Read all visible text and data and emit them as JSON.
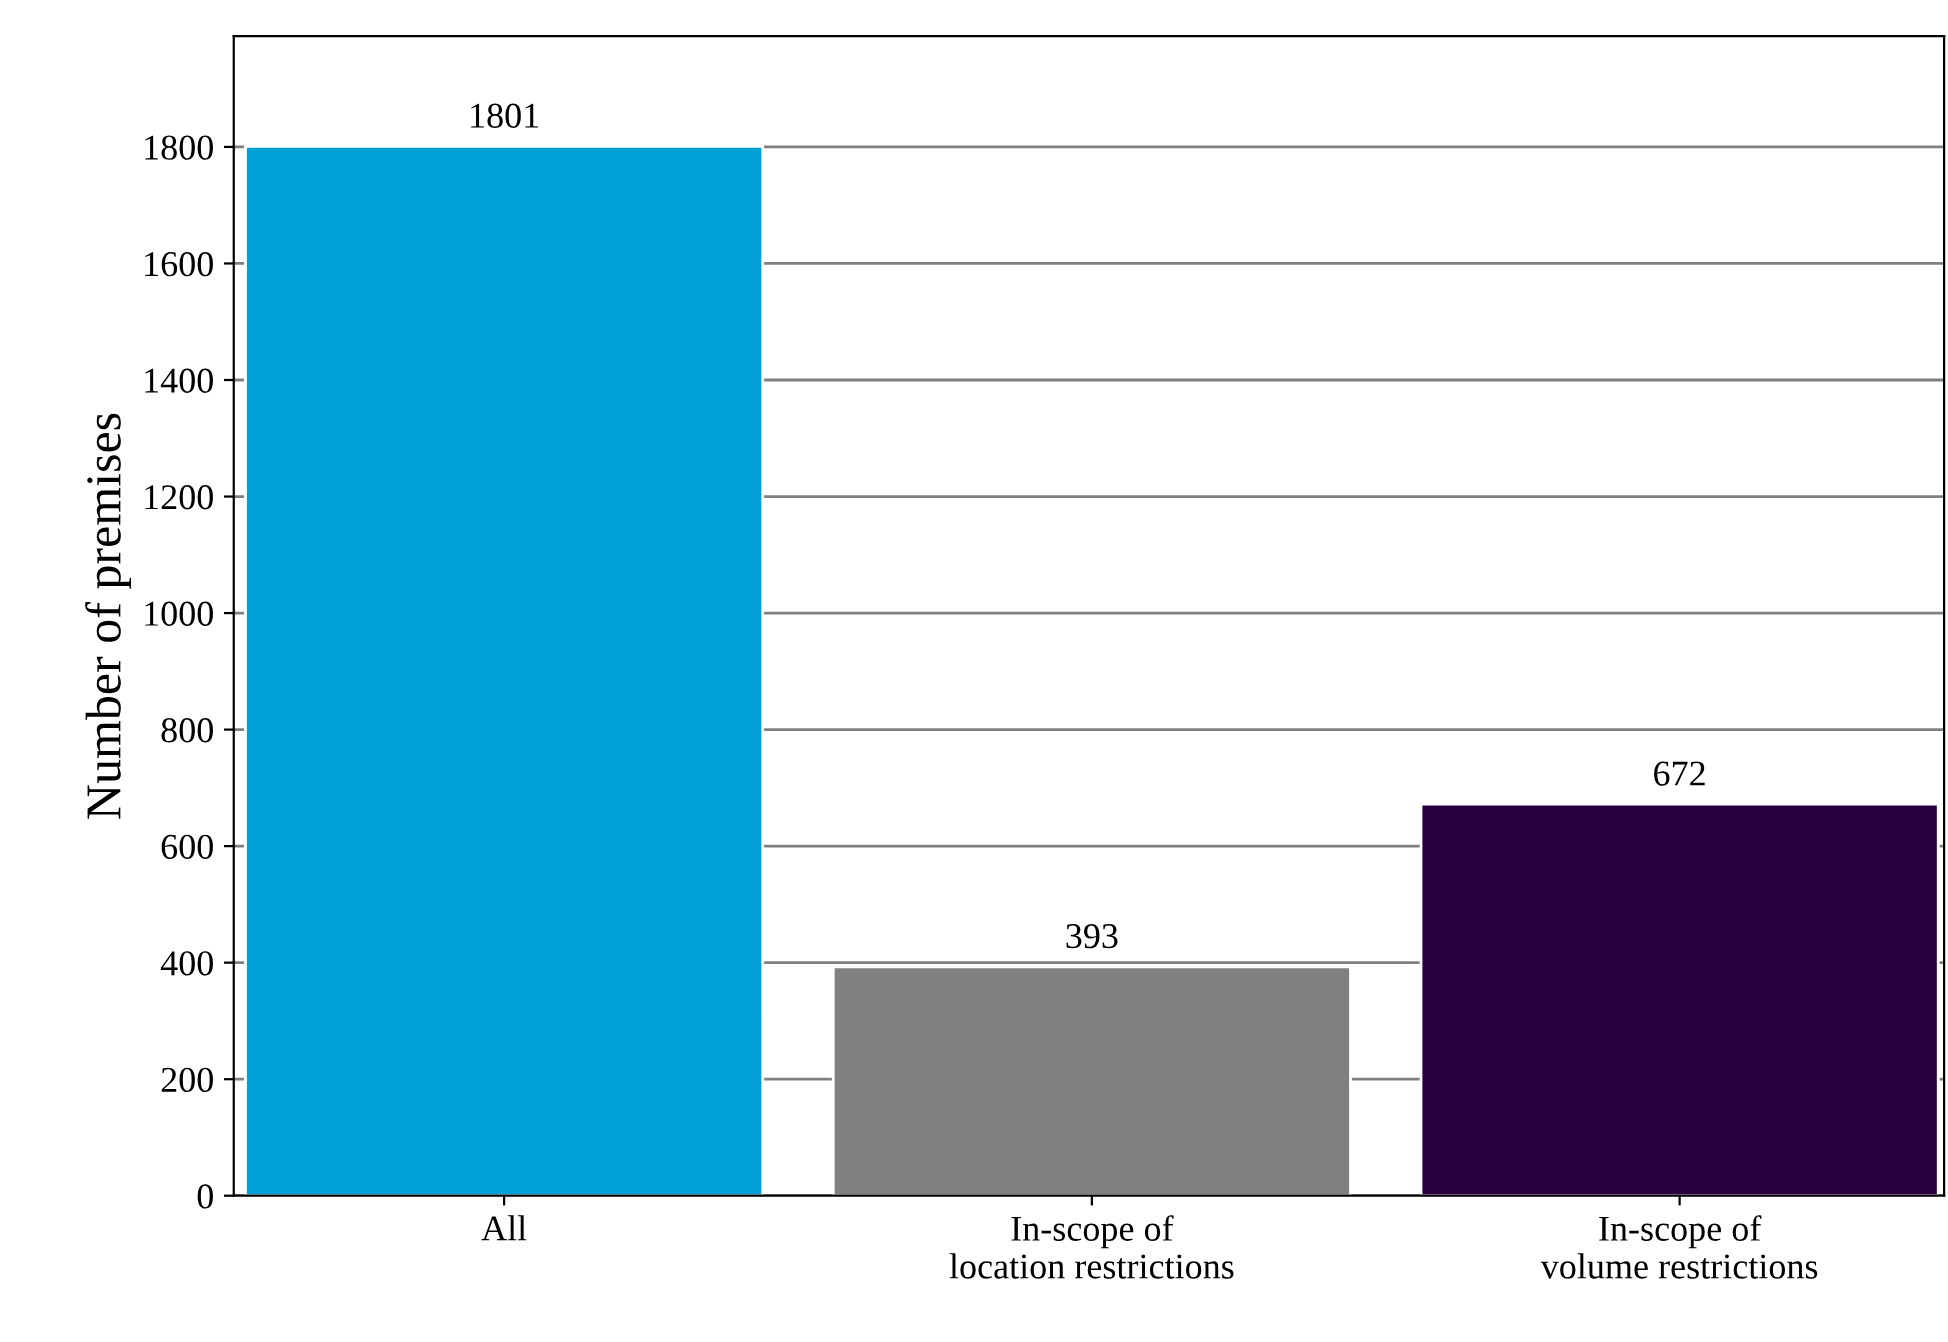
{
  "chart_data": {
    "type": "bar",
    "ylabel": "Number of premises",
    "categories": [
      "All",
      "In-scope of\nlocation restrictions",
      "In-scope of\nvolume restrictions"
    ],
    "values": [
      1801,
      393,
      672
    ],
    "colors": [
      "#009fd6",
      "#808080",
      "#2b0040"
    ],
    "ylim": [
      0,
      1990
    ],
    "yticks": [
      0,
      200,
      400,
      600,
      800,
      1000,
      1200,
      1400,
      1600,
      1800
    ],
    "grid": "y",
    "data_labels": true
  }
}
